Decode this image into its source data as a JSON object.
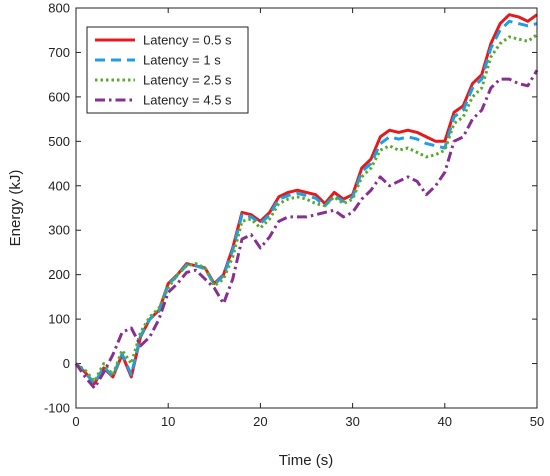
{
  "chart_data": {
    "type": "line",
    "xlabel": "Time (s)",
    "ylabel": "Energy (kJ)",
    "x": [
      0,
      1,
      2,
      3,
      4,
      5,
      6,
      7,
      8,
      9,
      10,
      11,
      12,
      13,
      14,
      15,
      16,
      17,
      18,
      19,
      20,
      21,
      22,
      23,
      24,
      25,
      26,
      27,
      28,
      29,
      30,
      31,
      32,
      33,
      34,
      35,
      36,
      37,
      38,
      39,
      40,
      41,
      42,
      43,
      44,
      45,
      46,
      47,
      48,
      49,
      50
    ],
    "series": [
      {
        "name": "Latency = 0.5 s",
        "color": "#e41a1c",
        "line_style": "solid",
        "values": [
          0,
          -20,
          -45,
          -10,
          -30,
          20,
          -30,
          60,
          100,
          120,
          180,
          200,
          225,
          220,
          215,
          180,
          200,
          260,
          340,
          335,
          320,
          340,
          375,
          385,
          390,
          385,
          380,
          360,
          385,
          370,
          380,
          440,
          460,
          510,
          525,
          520,
          525,
          520,
          510,
          500,
          500,
          565,
          580,
          630,
          650,
          720,
          765,
          785,
          780,
          770,
          785
        ]
      },
      {
        "name": "Latency = 1 s",
        "color": "#1f9fe3",
        "line_style": "dash",
        "values": [
          0,
          -20,
          -45,
          -8,
          -28,
          22,
          -25,
          62,
          100,
          118,
          178,
          198,
          222,
          220,
          213,
          178,
          198,
          255,
          335,
          330,
          315,
          335,
          370,
          378,
          383,
          378,
          372,
          355,
          378,
          365,
          375,
          432,
          450,
          495,
          510,
          505,
          510,
          505,
          495,
          490,
          485,
          555,
          570,
          620,
          640,
          710,
          750,
          770,
          765,
          760,
          765
        ]
      },
      {
        "name": "Latency = 2.5 s",
        "color": "#5aaa2d",
        "line_style": "dot",
        "values": [
          0,
          -15,
          -40,
          0,
          -25,
          30,
          0,
          70,
          105,
          125,
          170,
          200,
          220,
          225,
          215,
          175,
          190,
          240,
          320,
          325,
          305,
          325,
          360,
          370,
          375,
          370,
          360,
          355,
          375,
          360,
          370,
          420,
          440,
          480,
          490,
          480,
          485,
          475,
          465,
          470,
          480,
          540,
          555,
          600,
          620,
          690,
          720,
          735,
          730,
          725,
          740
        ]
      },
      {
        "name": "Latency = 4.5 s",
        "color": "#86308f",
        "line_style": "dashdot",
        "values": [
          0,
          -30,
          -55,
          -20,
          20,
          70,
          80,
          40,
          60,
          100,
          160,
          180,
          205,
          210,
          190,
          170,
          135,
          190,
          280,
          290,
          260,
          285,
          320,
          330,
          330,
          330,
          335,
          340,
          345,
          330,
          340,
          370,
          390,
          420,
          400,
          410,
          420,
          410,
          380,
          400,
          430,
          500,
          510,
          550,
          570,
          620,
          640,
          640,
          630,
          625,
          660
        ]
      }
    ],
    "xlim": [
      0,
      50
    ],
    "xticks": [
      0,
      10,
      20,
      30,
      40,
      50
    ],
    "ylim": [
      -100,
      800
    ],
    "yticks": [
      -100,
      0,
      100,
      200,
      300,
      400,
      500,
      600,
      700,
      800
    ],
    "legend": "upper left"
  }
}
